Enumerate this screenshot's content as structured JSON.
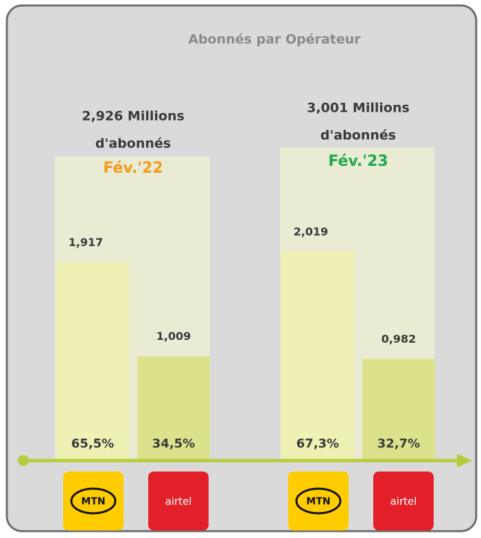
{
  "chart_data": {
    "type": "bar",
    "title": "Abonnés par Opérateur",
    "categories": [
      "Fév.'22",
      "Fév.'23"
    ],
    "category_colors": [
      "#f39a1e",
      "#1fa84f"
    ],
    "totals": [
      2.926,
      3.001
    ],
    "total_labels": [
      "2,926 Millions",
      "3,001 Millions"
    ],
    "total_unit": "d'abonnés",
    "series": [
      {
        "name": "MTN",
        "color": "#eef0b4",
        "values": [
          1.917,
          2.019
        ],
        "value_labels": [
          "1,917",
          "2,019"
        ],
        "shares": [
          65.5,
          67.3
        ],
        "share_labels": [
          "65,5%",
          "67,3%"
        ]
      },
      {
        "name": "airtel",
        "color": "#dce28c",
        "values": [
          1.009,
          0.982
        ],
        "value_labels": [
          "1,009",
          "0,982"
        ],
        "shares": [
          34.5,
          32.7
        ],
        "share_labels": [
          "34,5%",
          "32,7%"
        ]
      }
    ]
  }
}
